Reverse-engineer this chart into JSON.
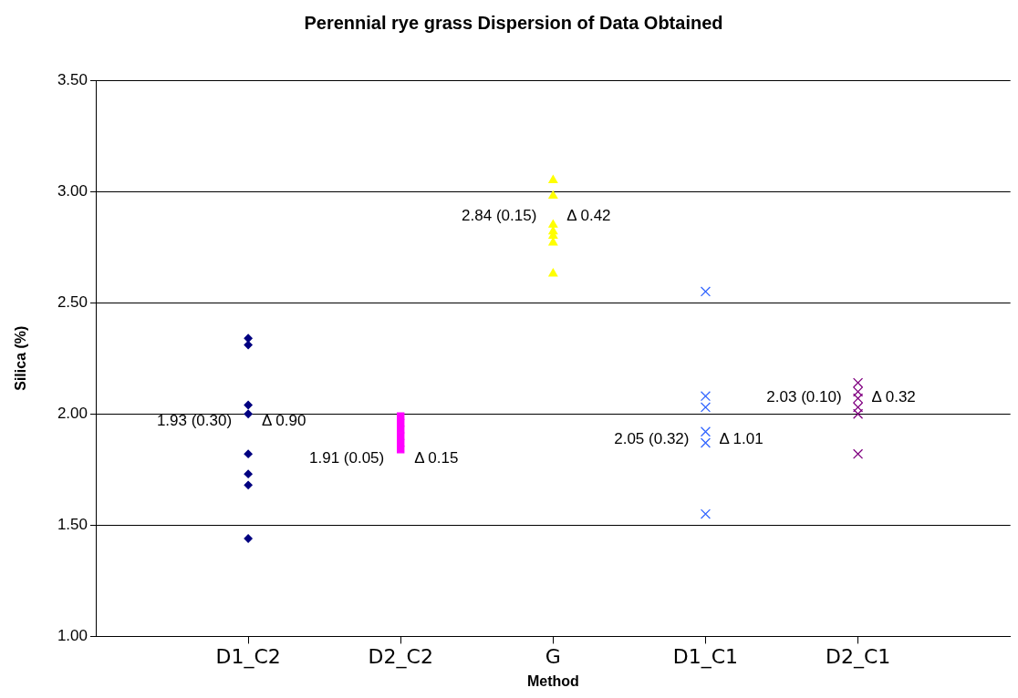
{
  "chart_data": {
    "type": "scatter",
    "title": "Perennial rye grass Dispersion of Data Obtained",
    "xlabel": "Method",
    "ylabel": "Silica (%)",
    "categories": [
      "D1_C2",
      "D2_C2",
      "G",
      "D1_C1",
      "D2_C1"
    ],
    "series": [
      {
        "x": [
          "D1_C2",
          "D1_C2",
          "D1_C2",
          "D1_C2",
          "D1_C2",
          "D1_C2",
          "D1_C2",
          "D1_C2"
        ],
        "values": [
          2.34,
          2.31,
          2.04,
          2.0,
          1.82,
          1.73,
          1.68,
          1.44
        ],
        "color": "#000080",
        "marker": "diamond"
      },
      {
        "x": [
          "D2_C2",
          "D2_C2",
          "D2_C2",
          "D2_C2",
          "D2_C2",
          "D2_C2"
        ],
        "values": [
          1.99,
          1.96,
          1.93,
          1.9,
          1.87,
          1.84
        ],
        "color": "#ff00ff",
        "marker": "square"
      },
      {
        "x": [
          "G",
          "G",
          "G",
          "G",
          "G",
          "G",
          "G"
        ],
        "values": [
          3.05,
          2.98,
          2.85,
          2.82,
          2.8,
          2.77,
          2.63
        ],
        "color": "#ffff00",
        "marker": "triangle"
      },
      {
        "x": [
          "D1_C1",
          "D1_C1",
          "D1_C1",
          "D1_C1",
          "D1_C1",
          "D1_C1"
        ],
        "values": [
          2.55,
          2.08,
          2.03,
          1.92,
          1.87,
          1.55
        ],
        "color": "#3366ff",
        "marker": "cross"
      },
      {
        "x": [
          "D2_C1",
          "D2_C1",
          "D2_C1",
          "D2_C1",
          "D2_C1",
          "D2_C1"
        ],
        "values": [
          2.14,
          2.1,
          2.07,
          2.03,
          2.0,
          1.82
        ],
        "color": "#800080",
        "marker": "cross"
      }
    ],
    "ylim": [
      1.0,
      3.5
    ],
    "yticks": [
      {
        "value": 1.0,
        "label": "1.00"
      },
      {
        "value": 1.5,
        "label": "1.50"
      },
      {
        "value": 2.0,
        "label": "2.00"
      },
      {
        "value": 2.5,
        "label": "2.50"
      },
      {
        "value": 3.0,
        "label": "3.00"
      },
      {
        "value": 3.5,
        "label": "3.50"
      }
    ],
    "grid": "y",
    "legend": false,
    "annotations": [
      "1.93 (0.30)",
      "Δ 0.90",
      "1.91 (0.05)",
      "Δ 0.15",
      "2.84 (0.15)",
      "Δ 0.42",
      "2.05 (0.32)",
      "Δ 1.01",
      "2.03 (0.10)",
      "Δ 0.32"
    ]
  }
}
